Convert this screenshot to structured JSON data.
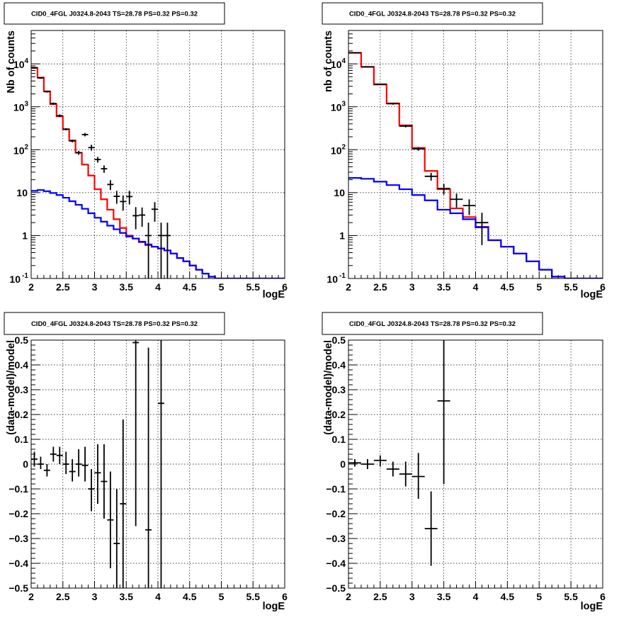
{
  "chart_data": [
    {
      "id": "p1",
      "type": "step-histogram-with-points",
      "title": "CID0_4FGL J0324.8-2043 TS=28.78 PS=0.32 PS=0.32",
      "xlabel": "logE",
      "ylabel": "Nb of counts",
      "xlim": [
        2,
        6
      ],
      "ylim": [
        0.1,
        60000
      ],
      "yscale": "log",
      "grid": true,
      "x_ticks": [
        "2",
        "2.5",
        "3",
        "3.5",
        "4",
        "4.5",
        "5",
        "5.5",
        "6"
      ],
      "y_ticks": [
        "10^-1",
        "1",
        "10",
        "10^2",
        "10^3",
        "10^4"
      ],
      "bin_edges": [
        2,
        2.1,
        2.2,
        2.3,
        2.4,
        2.5,
        2.6,
        2.7,
        2.8,
        2.9,
        3.0,
        3.1,
        3.2,
        3.3,
        3.4,
        3.5,
        3.6,
        3.7,
        3.8,
        3.9,
        4.0,
        4.1,
        4.2,
        4.3,
        4.4,
        4.5,
        4.6,
        4.7,
        4.8,
        4.9,
        5.0,
        5.1,
        5.2,
        5.3,
        5.4,
        5.5,
        5.6,
        5.7,
        5.8,
        5.9,
        6.0
      ],
      "series": [
        {
          "name": "",
          "kind": "step",
          "color": "#ff0000",
          "values": [
            8000,
            4800,
            2300,
            1150,
            600,
            300,
            165,
            85,
            45,
            25,
            12,
            7,
            4.0,
            2.4,
            1.5,
            1.0,
            0.85,
            0.7,
            0.6,
            0.55,
            0.5,
            0.45,
            0.38,
            0.3,
            0.25,
            0.2,
            0.16,
            0.13,
            0.11,
            0.1,
            0.1,
            0.1,
            0.1,
            0.1,
            0.1,
            0.1,
            0.1,
            0.1,
            0.1,
            0.1
          ]
        },
        {
          "name": "",
          "kind": "step",
          "color": "#0000ff",
          "values": [
            11,
            11.5,
            10.8,
            9.8,
            8.8,
            7.6,
            6.3,
            5.2,
            4.2,
            3.3,
            2.6,
            2.1,
            1.7,
            1.4,
            1.15,
            0.95,
            0.85,
            0.72,
            0.62,
            0.55,
            0.5,
            0.45,
            0.38,
            0.3,
            0.25,
            0.2,
            0.16,
            0.13,
            0.11,
            0.1,
            0.1,
            0.1,
            0.1,
            0.1,
            0.1,
            0.1,
            0.1,
            0.1,
            0.1,
            0.1
          ]
        },
        {
          "name": "",
          "kind": "points",
          "color": "#000000",
          "points": [
            {
              "x": 2.05,
              "y": 8200,
              "lo": 7900,
              "hi": 8500,
              "xerr": 0.05
            },
            {
              "x": 2.15,
              "y": 4700,
              "lo": 4500,
              "hi": 4900,
              "xerr": 0.05
            },
            {
              "x": 2.25,
              "y": 2250,
              "lo": 2150,
              "hi": 2350,
              "xerr": 0.05
            },
            {
              "x": 2.35,
              "y": 1190,
              "lo": 1120,
              "hi": 1260,
              "xerr": 0.05
            },
            {
              "x": 2.45,
              "y": 620,
              "lo": 575,
              "hi": 665,
              "xerr": 0.05
            },
            {
              "x": 2.55,
              "y": 300,
              "lo": 282,
              "hi": 318,
              "xerr": 0.05
            },
            {
              "x": 2.65,
              "y": 160,
              "lo": 148,
              "hi": 172,
              "xerr": 0.05
            },
            {
              "x": 2.75,
              "y": 85,
              "lo": 76,
              "hi": 94,
              "xerr": 0.05
            },
            {
              "x": 2.85,
              "y": 225,
              "lo": 205,
              "hi": 245,
              "xerr": 0.05
            },
            {
              "x": 2.95,
              "y": 112,
              "lo": 95,
              "hi": 130,
              "xerr": 0.05
            },
            {
              "x": 3.05,
              "y": 59,
              "lo": 50,
              "hi": 68,
              "xerr": 0.05
            },
            {
              "x": 3.15,
              "y": 36,
              "lo": 29,
              "hi": 43,
              "xerr": 0.05
            },
            {
              "x": 3.25,
              "y": 15.5,
              "lo": 11.5,
              "hi": 19.5,
              "xerr": 0.05
            },
            {
              "x": 3.35,
              "y": 8.2,
              "lo": 5.5,
              "hi": 11,
              "xerr": 0.05
            },
            {
              "x": 3.45,
              "y": 6.2,
              "lo": 3.8,
              "hi": 8.6,
              "xerr": 0.05
            },
            {
              "x": 3.55,
              "y": 8.1,
              "lo": 5.3,
              "hi": 11,
              "xerr": 0.05
            },
            {
              "x": 3.65,
              "y": 2.9,
              "lo": 1.4,
              "hi": 4.6,
              "xerr": 0.05
            },
            {
              "x": 3.75,
              "y": 3.0,
              "lo": 1.6,
              "hi": 4.5,
              "xerr": 0.05
            },
            {
              "x": 3.85,
              "y": 1.0,
              "lo": 0.1,
              "hi": 2.0,
              "xerr": 0.05
            },
            {
              "x": 3.95,
              "y": 4.1,
              "lo": 2.1,
              "hi": 6.0,
              "xerr": 0.05
            },
            {
              "x": 4.05,
              "y": 1.0,
              "lo": 0.1,
              "hi": 2.0,
              "xerr": 0.05
            },
            {
              "x": 4.15,
              "y": 1.0,
              "lo": 0.1,
              "hi": 2.0,
              "xerr": 0.05
            }
          ]
        }
      ]
    },
    {
      "id": "p2",
      "type": "step-histogram-with-points",
      "title": "CID0_4FGL J0324.8-2043 TS=28.78 PS=0.32 PS=0.32",
      "xlabel": "logE",
      "ylabel": "nb of counts",
      "xlim": [
        2,
        6
      ],
      "ylim": [
        0.1,
        60000
      ],
      "yscale": "log",
      "grid": true,
      "x_ticks": [
        "2",
        "2.5",
        "3",
        "3.5",
        "4",
        "4.5",
        "5",
        "5.5",
        "6"
      ],
      "y_ticks": [
        "10^-1",
        "1",
        "10",
        "10^2",
        "10^3",
        "10^4"
      ],
      "bin_edges": [
        2,
        2.2,
        2.4,
        2.6,
        2.8,
        3.0,
        3.2,
        3.4,
        3.6,
        3.8,
        4.0,
        4.2,
        4.4,
        4.6,
        4.8,
        5.0,
        5.2,
        5.4,
        5.6,
        5.8,
        6.0
      ],
      "series": [
        {
          "name": "",
          "kind": "step",
          "color": "#ff0000",
          "values": [
            18000,
            8500,
            3300,
            1200,
            370,
            110,
            32,
            12,
            4.3,
            2.7,
            1.6,
            0.78,
            0.55,
            0.38,
            0.25,
            0.16,
            0.11,
            0.1,
            0.1,
            0.1
          ]
        },
        {
          "name": "",
          "kind": "step",
          "color": "#0000ff",
          "values": [
            22,
            21,
            18,
            15,
            12,
            8.8,
            6.6,
            4.0,
            3.3,
            2.4,
            1.55,
            0.78,
            0.55,
            0.38,
            0.25,
            0.16,
            0.11,
            0.1,
            0.1,
            0.1
          ]
        },
        {
          "name": "",
          "kind": "points",
          "color": "#000000",
          "points": [
            {
              "x": 2.1,
              "y": 18200,
              "lo": 17900,
              "hi": 18500,
              "xerr": 0.1
            },
            {
              "x": 2.3,
              "y": 8500,
              "lo": 8300,
              "hi": 8700,
              "xerr": 0.1
            },
            {
              "x": 2.5,
              "y": 3360,
              "lo": 3250,
              "hi": 3470,
              "xerr": 0.1
            },
            {
              "x": 2.7,
              "y": 1180,
              "lo": 1120,
              "hi": 1240,
              "xerr": 0.1
            },
            {
              "x": 2.9,
              "y": 355,
              "lo": 330,
              "hi": 380,
              "xerr": 0.1
            },
            {
              "x": 3.1,
              "y": 105,
              "lo": 95,
              "hi": 115,
              "xerr": 0.1
            },
            {
              "x": 3.3,
              "y": 24,
              "lo": 19,
              "hi": 29,
              "xerr": 0.1
            },
            {
              "x": 3.5,
              "y": 12.5,
              "lo": 9,
              "hi": 16,
              "xerr": 0.1
            },
            {
              "x": 3.7,
              "y": 7,
              "lo": 4.5,
              "hi": 9.5,
              "xerr": 0.1
            },
            {
              "x": 3.9,
              "y": 5,
              "lo": 3,
              "hi": 7,
              "xerr": 0.1
            },
            {
              "x": 4.1,
              "y": 2,
              "lo": 0.6,
              "hi": 3.4,
              "xerr": 0.1
            }
          ]
        }
      ]
    },
    {
      "id": "p3",
      "type": "points-with-errors",
      "title": "CID0_4FGL J0324.8-2043 TS=28.78 PS=0.32 PS=0.32",
      "xlabel": "logE",
      "ylabel": "(data-model)/model",
      "xlim": [
        2,
        6
      ],
      "ylim": [
        -0.5,
        0.5
      ],
      "yscale": "linear",
      "grid": true,
      "x_ticks": [
        "2",
        "2.5",
        "3",
        "3.5",
        "4",
        "4.5",
        "5",
        "5.5",
        "6"
      ],
      "y_ticks": [
        "-0.5",
        "-0.4",
        "-0.3",
        "-0.2",
        "-0.1",
        "0",
        "0.1",
        "0.2",
        "0.3",
        "0.4",
        "0.5"
      ],
      "series": [
        {
          "name": "",
          "kind": "points",
          "color": "#000000",
          "points": [
            {
              "x": 2.05,
              "y": 0.02,
              "lo": -0.01,
              "hi": 0.05,
              "xerr": 0.05
            },
            {
              "x": 2.15,
              "y": 0.0,
              "lo": -0.02,
              "hi": 0.03,
              "xerr": 0.05
            },
            {
              "x": 2.25,
              "y": -0.025,
              "lo": -0.05,
              "hi": 0.0,
              "xerr": 0.05
            },
            {
              "x": 2.35,
              "y": 0.04,
              "lo": 0.01,
              "hi": 0.07,
              "xerr": 0.05
            },
            {
              "x": 2.45,
              "y": 0.035,
              "lo": 0.0,
              "hi": 0.07,
              "xerr": 0.05
            },
            {
              "x": 2.55,
              "y": 0.0,
              "lo": -0.04,
              "hi": 0.05,
              "xerr": 0.05
            },
            {
              "x": 2.65,
              "y": -0.03,
              "lo": -0.07,
              "hi": 0.02,
              "xerr": 0.05
            },
            {
              "x": 2.75,
              "y": 0.0,
              "lo": -0.05,
              "hi": 0.06,
              "xerr": 0.05
            },
            {
              "x": 2.85,
              "y": -0.005,
              "lo": -0.07,
              "hi": 0.07,
              "xerr": 0.05
            },
            {
              "x": 2.95,
              "y": -0.1,
              "lo": -0.19,
              "hi": -0.02,
              "xerr": 0.05
            },
            {
              "x": 3.05,
              "y": -0.035,
              "lo": -0.16,
              "hi": 0.08,
              "xerr": 0.05
            },
            {
              "x": 3.15,
              "y": -0.07,
              "lo": -0.22,
              "hi": 0.08,
              "xerr": 0.05
            },
            {
              "x": 3.25,
              "y": -0.225,
              "lo": -0.42,
              "hi": -0.03,
              "xerr": 0.05
            },
            {
              "x": 3.35,
              "y": -0.32,
              "lo": -0.5,
              "hi": -0.1,
              "xerr": 0.05
            },
            {
              "x": 3.45,
              "y": -0.16,
              "lo": -0.5,
              "hi": 0.18,
              "xerr": 0.05
            },
            {
              "x": 3.65,
              "y": 0.49,
              "lo": -0.25,
              "hi": 0.5,
              "xerr": 0.05
            },
            {
              "x": 3.85,
              "y": -0.265,
              "lo": -0.5,
              "hi": 0.47,
              "xerr": 0.05
            },
            {
              "x": 4.05,
              "y": 0.245,
              "lo": -0.5,
              "hi": 0.5,
              "xerr": 0.05
            }
          ]
        }
      ]
    },
    {
      "id": "p4",
      "type": "points-with-errors",
      "title": "CID0_4FGL J0324.8-2043 TS=28.78 PS=0.32 PS=0.32",
      "xlabel": "logE",
      "ylabel": "(data-model)/model",
      "xlim": [
        2,
        6
      ],
      "ylim": [
        -0.5,
        0.5
      ],
      "yscale": "linear",
      "grid": true,
      "x_ticks": [
        "2",
        "2.5",
        "3",
        "3.5",
        "4",
        "4.5",
        "5",
        "5.5",
        "6"
      ],
      "y_ticks": [
        "-0.5",
        "-0.4",
        "-0.3",
        "-0.2",
        "-0.1",
        "0",
        "0.1",
        "0.2",
        "0.3",
        "0.4",
        "0.5"
      ],
      "series": [
        {
          "name": "",
          "kind": "points",
          "color": "#000000",
          "points": [
            {
              "x": 2.1,
              "y": 0.005,
              "lo": -0.01,
              "hi": 0.02,
              "xerr": 0.1
            },
            {
              "x": 2.3,
              "y": 0.0,
              "lo": -0.02,
              "hi": 0.02,
              "xerr": 0.1
            },
            {
              "x": 2.5,
              "y": 0.015,
              "lo": -0.01,
              "hi": 0.035,
              "xerr": 0.1
            },
            {
              "x": 2.7,
              "y": -0.02,
              "lo": -0.05,
              "hi": 0.01,
              "xerr": 0.1
            },
            {
              "x": 2.9,
              "y": -0.04,
              "lo": -0.09,
              "hi": 0.01,
              "xerr": 0.1
            },
            {
              "x": 3.1,
              "y": -0.05,
              "lo": -0.14,
              "hi": 0.045,
              "xerr": 0.1
            },
            {
              "x": 3.3,
              "y": -0.26,
              "lo": -0.41,
              "hi": -0.11,
              "xerr": 0.1
            },
            {
              "x": 3.5,
              "y": 0.255,
              "lo": -0.08,
              "hi": 0.5,
              "xerr": 0.1
            }
          ]
        }
      ]
    }
  ]
}
